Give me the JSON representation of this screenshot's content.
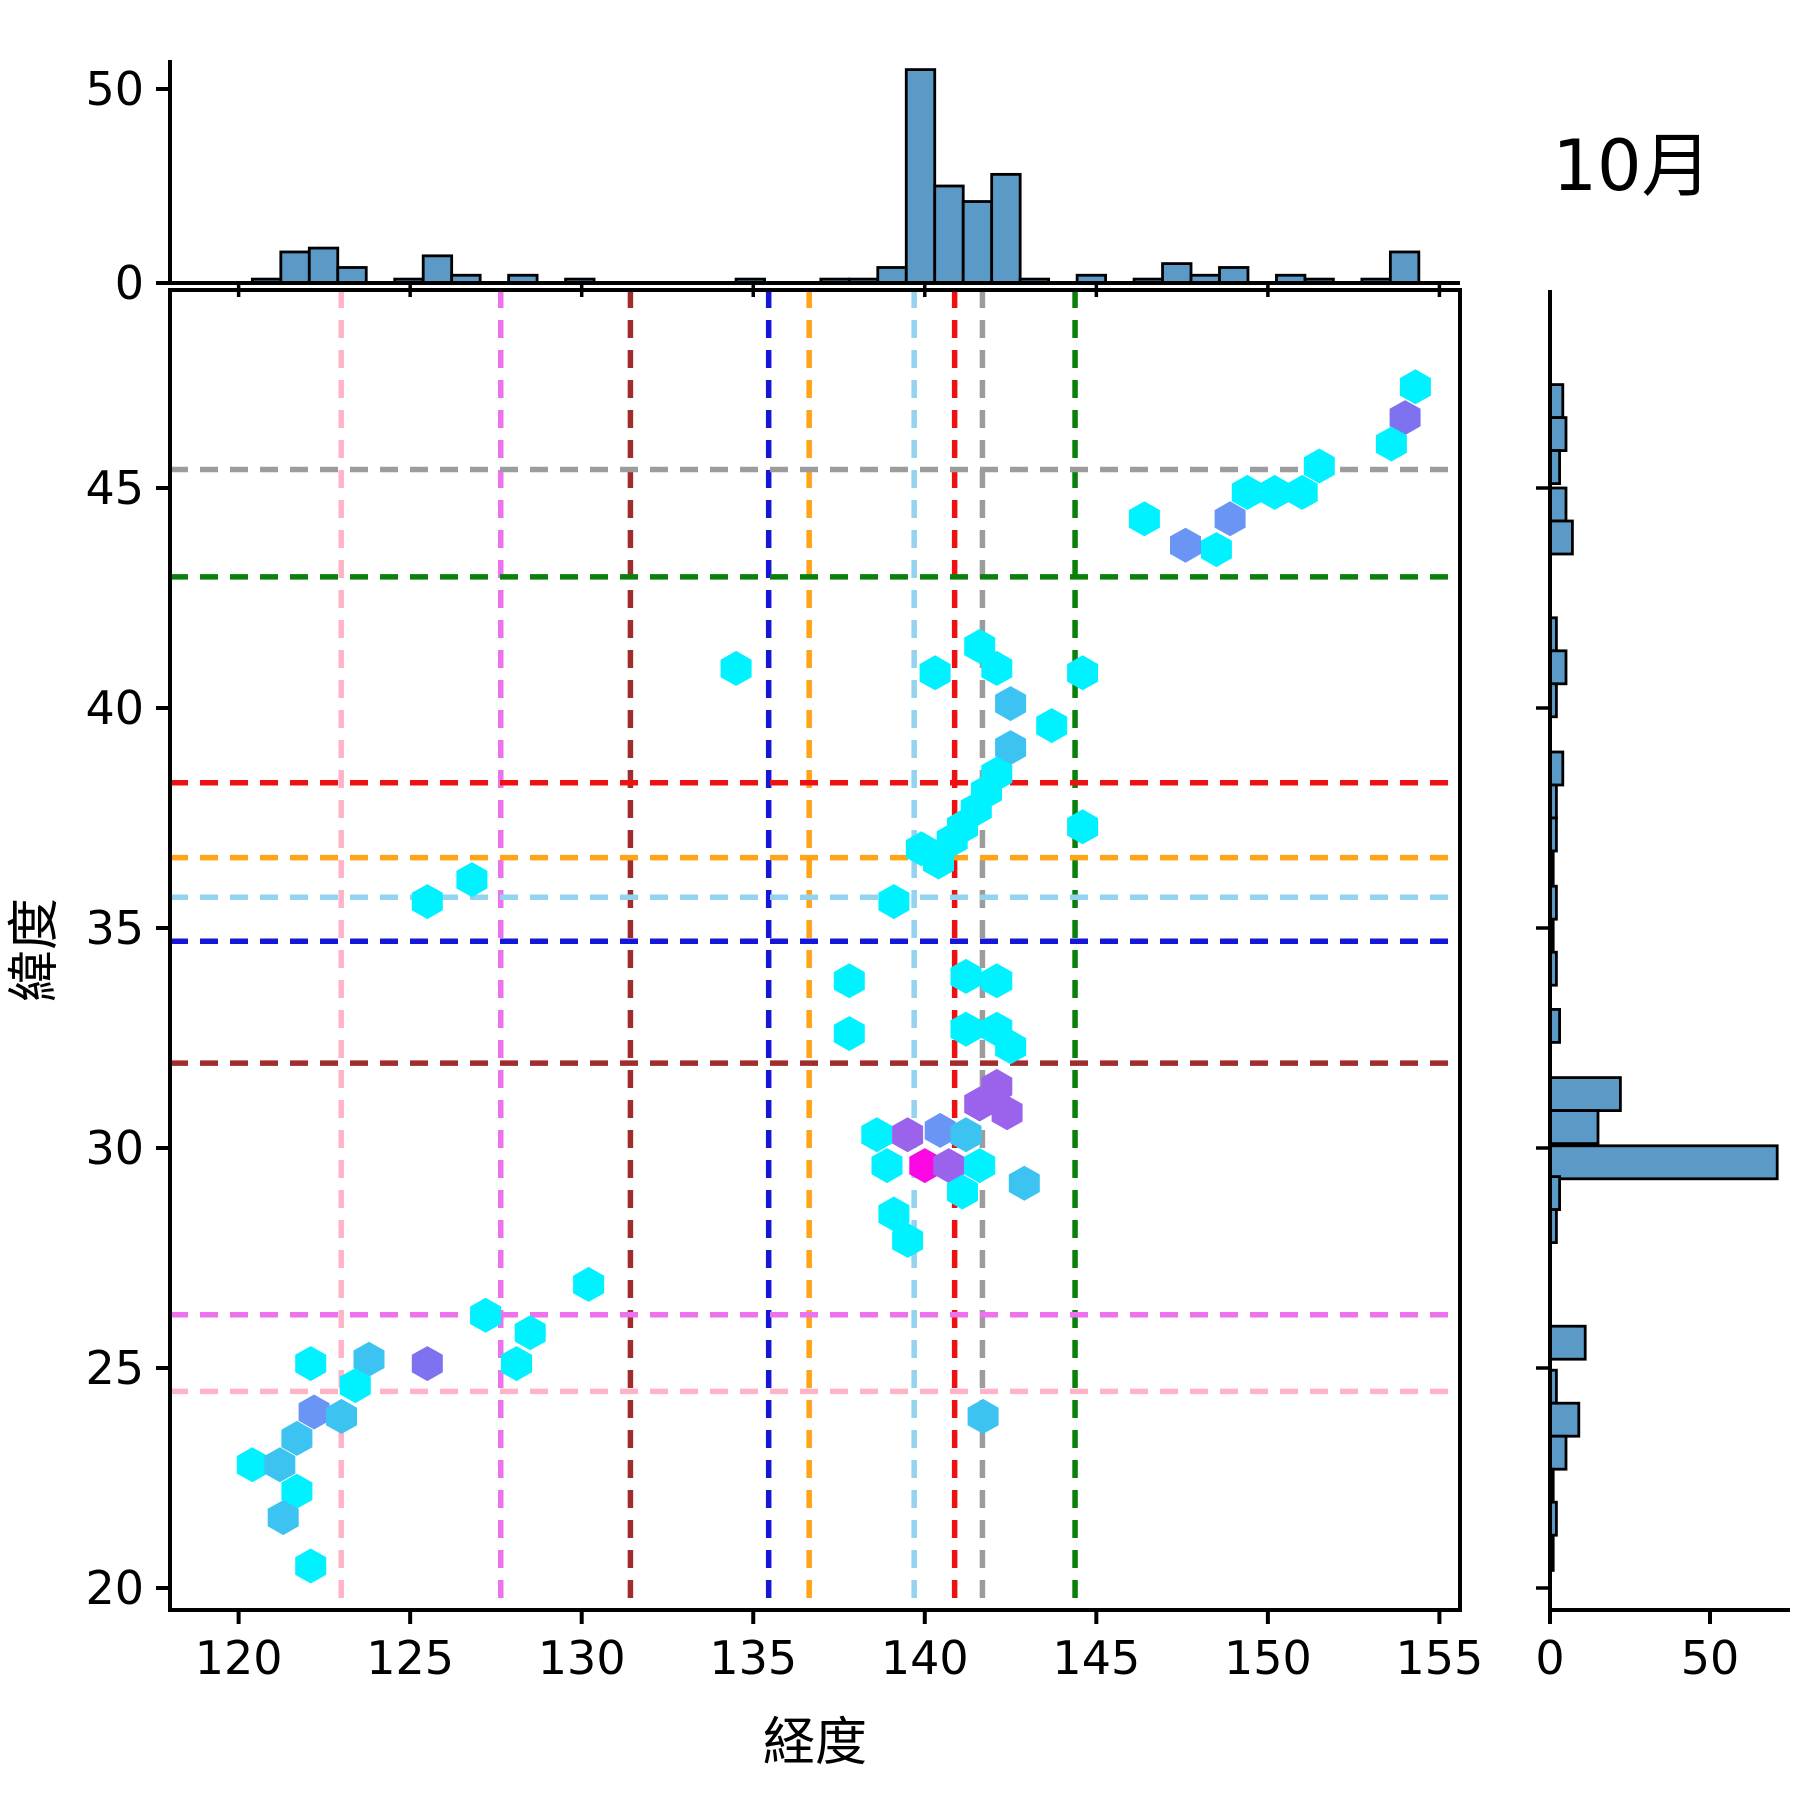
{
  "figure": {
    "title": "10月",
    "x_axis_label": "経度",
    "y_axis_label": "緯度"
  },
  "chart_data": {
    "type": "hexbin-joint-scatter-with-marginal-histograms",
    "main": {
      "xlim": [
        118.0,
        155.6
      ],
      "ylim": [
        19.5,
        49.5
      ],
      "xticks": [
        120,
        125,
        130,
        135,
        140,
        145,
        150,
        155
      ],
      "yticks": [
        20,
        25,
        30,
        35,
        40,
        45
      ],
      "grid": false,
      "hex_palette": [
        "#00f1ff",
        "#3cc3f2",
        "#6b95f5",
        "#7e72f0",
        "#9b63ec",
        "#fb07e3"
      ],
      "reference_lines_vertical": [
        {
          "x": 122.99,
          "color": "#ffb3c6"
        },
        {
          "x": 127.64,
          "color": "#ee72ee"
        },
        {
          "x": 131.42,
          "color": "#a02c2c"
        },
        {
          "x": 135.45,
          "color": "#1616d8"
        },
        {
          "x": 136.63,
          "color": "#ffa317"
        },
        {
          "x": 139.69,
          "color": "#94d3f0"
        },
        {
          "x": 140.87,
          "color": "#ee1111"
        },
        {
          "x": 141.68,
          "color": "#9c9c9c"
        },
        {
          "x": 144.38,
          "color": "#0a800a"
        }
      ],
      "reference_lines_horizontal": [
        {
          "y": 45.42,
          "color": "#9c9c9c"
        },
        {
          "y": 42.98,
          "color": "#0a800a"
        },
        {
          "y": 38.3,
          "color": "#ee1111"
        },
        {
          "y": 36.6,
          "color": "#ffa317"
        },
        {
          "y": 35.7,
          "color": "#94d3f0"
        },
        {
          "y": 34.7,
          "color": "#1616d8"
        },
        {
          "y": 31.93,
          "color": "#a02c2c"
        },
        {
          "y": 26.21,
          "color": "#ee72ee"
        },
        {
          "y": 24.47,
          "color": "#ffb3c6"
        }
      ],
      "hexagons": [
        [
          154.3,
          47.3,
          1
        ],
        [
          154.0,
          46.6,
          4
        ],
        [
          153.6,
          46.0,
          1
        ],
        [
          151.5,
          45.5,
          1
        ],
        [
          151.0,
          44.9,
          1
        ],
        [
          150.2,
          44.9,
          1
        ],
        [
          149.4,
          44.9,
          1
        ],
        [
          148.9,
          44.3,
          3
        ],
        [
          146.4,
          44.3,
          1
        ],
        [
          148.5,
          43.6,
          1
        ],
        [
          147.6,
          43.7,
          3
        ],
        [
          141.6,
          41.4,
          1
        ],
        [
          142.1,
          40.9,
          1
        ],
        [
          140.3,
          40.8,
          1
        ],
        [
          144.6,
          40.8,
          1
        ],
        [
          134.5,
          40.9,
          1
        ],
        [
          142.5,
          40.1,
          2
        ],
        [
          143.7,
          39.6,
          1
        ],
        [
          142.5,
          39.1,
          2
        ],
        [
          142.1,
          38.5,
          1
        ],
        [
          141.8,
          38.1,
          1
        ],
        [
          141.5,
          37.7,
          1
        ],
        [
          141.1,
          37.3,
          1
        ],
        [
          144.6,
          37.3,
          1
        ],
        [
          140.8,
          37.0,
          1
        ],
        [
          139.9,
          36.8,
          1
        ],
        [
          140.4,
          36.5,
          1
        ],
        [
          126.8,
          36.1,
          1
        ],
        [
          125.5,
          35.6,
          1
        ],
        [
          139.1,
          35.6,
          1
        ],
        [
          137.8,
          33.8,
          1
        ],
        [
          141.2,
          33.9,
          1
        ],
        [
          142.1,
          33.8,
          1
        ],
        [
          137.8,
          32.6,
          1
        ],
        [
          141.2,
          32.7,
          1
        ],
        [
          142.1,
          32.7,
          1
        ],
        [
          142.5,
          32.3,
          1
        ],
        [
          142.1,
          31.4,
          5
        ],
        [
          141.6,
          31.0,
          5
        ],
        [
          142.4,
          30.8,
          5
        ],
        [
          138.6,
          30.3,
          1
        ],
        [
          139.5,
          30.3,
          5
        ],
        [
          140.45,
          30.4,
          3
        ],
        [
          141.2,
          30.3,
          2
        ],
        [
          138.9,
          29.6,
          1
        ],
        [
          140.0,
          29.6,
          6
        ],
        [
          140.7,
          29.6,
          5
        ],
        [
          141.6,
          29.6,
          1
        ],
        [
          141.1,
          29.0,
          1
        ],
        [
          142.9,
          29.2,
          2
        ],
        [
          139.1,
          28.5,
          1
        ],
        [
          139.5,
          27.9,
          1
        ],
        [
          141.7,
          23.9,
          2
        ],
        [
          130.2,
          26.9,
          1
        ],
        [
          127.2,
          26.2,
          1
        ],
        [
          128.5,
          25.8,
          1
        ],
        [
          128.1,
          25.1,
          1
        ],
        [
          125.5,
          25.1,
          4
        ],
        [
          123.8,
          25.2,
          2
        ],
        [
          122.1,
          25.1,
          1
        ],
        [
          123.4,
          24.6,
          1
        ],
        [
          122.2,
          24.0,
          3
        ],
        [
          123.0,
          23.9,
          2
        ],
        [
          121.7,
          23.4,
          2
        ],
        [
          120.4,
          22.8,
          1
        ],
        [
          121.2,
          22.8,
          2
        ],
        [
          121.7,
          22.2,
          1
        ],
        [
          121.3,
          21.6,
          2
        ],
        [
          122.1,
          20.5,
          1
        ]
      ]
    },
    "top_hist": {
      "orientation": "vertical",
      "bar_color": "#5b9ac6",
      "bin_width": 0.83,
      "ylim": [
        0,
        57.5
      ],
      "yticks": [
        0,
        50
      ],
      "bars": [
        [
          120.4,
          1
        ],
        [
          121.23,
          8
        ],
        [
          122.06,
          9
        ],
        [
          122.89,
          4
        ],
        [
          124.55,
          1
        ],
        [
          125.38,
          7
        ],
        [
          126.21,
          2
        ],
        [
          127.87,
          2
        ],
        [
          129.53,
          1
        ],
        [
          134.5,
          1
        ],
        [
          136.97,
          1
        ],
        [
          137.8,
          1
        ],
        [
          138.63,
          4
        ],
        [
          139.46,
          55
        ],
        [
          140.29,
          25
        ],
        [
          141.12,
          21
        ],
        [
          141.95,
          28
        ],
        [
          142.78,
          1
        ],
        [
          144.44,
          2
        ],
        [
          146.1,
          1
        ],
        [
          146.93,
          5
        ],
        [
          147.76,
          2
        ],
        [
          148.59,
          4
        ],
        [
          150.25,
          2
        ],
        [
          151.08,
          1
        ],
        [
          152.74,
          1
        ],
        [
          153.57,
          8
        ]
      ]
    },
    "right_hist": {
      "orientation": "horizontal",
      "bar_color": "#5b9ac6",
      "bin_height": 0.75,
      "xlim": [
        0,
        75
      ],
      "xticks": [
        0,
        50
      ],
      "bars": [
        [
          46.6,
          4
        ],
        [
          45.85,
          5
        ],
        [
          45.1,
          3
        ],
        [
          44.25,
          5
        ],
        [
          43.5,
          7
        ],
        [
          41.3,
          2
        ],
        [
          40.55,
          5
        ],
        [
          39.8,
          2
        ],
        [
          38.25,
          4
        ],
        [
          37.5,
          2
        ],
        [
          36.75,
          2
        ],
        [
          36.0,
          1
        ],
        [
          35.2,
          2
        ],
        [
          34.45,
          1
        ],
        [
          33.7,
          2
        ],
        [
          32.4,
          3
        ],
        [
          30.85,
          22
        ],
        [
          30.1,
          15
        ],
        [
          29.3,
          71
        ],
        [
          28.6,
          3
        ],
        [
          27.85,
          2
        ],
        [
          25.2,
          11
        ],
        [
          24.2,
          2
        ],
        [
          23.45,
          9
        ],
        [
          22.7,
          5
        ],
        [
          21.95,
          1
        ],
        [
          21.2,
          2
        ],
        [
          20.4,
          1
        ]
      ]
    }
  }
}
